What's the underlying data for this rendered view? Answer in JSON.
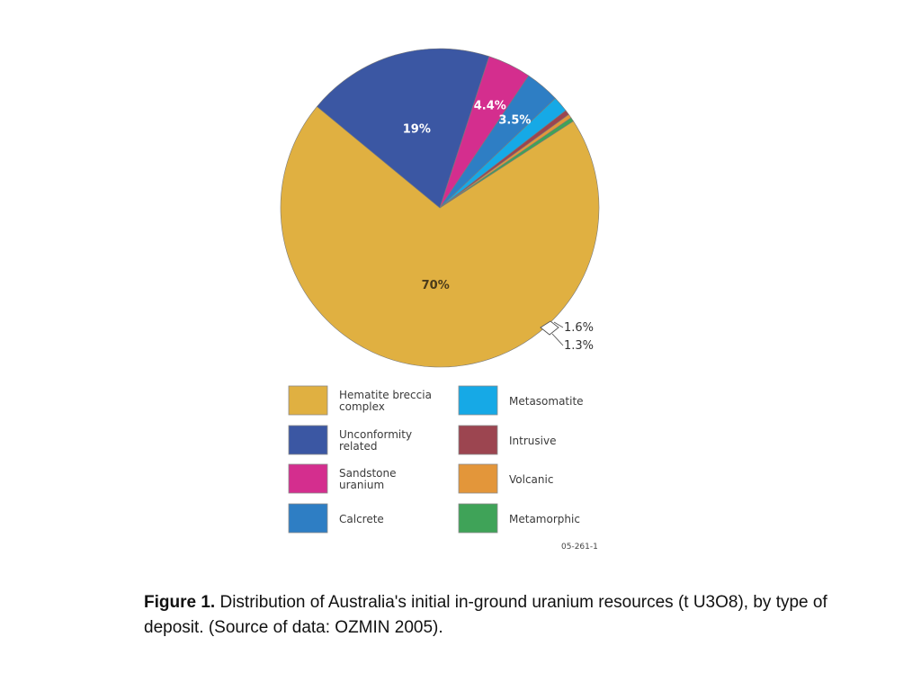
{
  "chart_data": {
    "type": "pie",
    "title": "",
    "slices": [
      {
        "name": "Hematite breccia complex",
        "value": 70,
        "label": "70%",
        "color": "#e0b041"
      },
      {
        "name": "Unconformity related",
        "value": 19,
        "label": "19%",
        "color": "#3b57a3"
      },
      {
        "name": "Sandstone uranium",
        "value": 4.4,
        "label": "4.4%",
        "color": "#d42e8e"
      },
      {
        "name": "Calcrete",
        "value": 3.5,
        "label": "3.5%",
        "color": "#2e7ec4"
      },
      {
        "name": "Metasomatite",
        "value": 1.6,
        "label": "",
        "color": "#16a9e6"
      },
      {
        "name": "Intrusive",
        "value": 0.5,
        "label": "",
        "color": "#9c4550"
      },
      {
        "name": "Volcanic",
        "value": 0.4,
        "label": "",
        "color": "#e3963a"
      },
      {
        "name": "Metamorphic",
        "value": 0.4,
        "label": "",
        "color": "#3fa358"
      }
    ],
    "callouts": [
      "1.6%",
      "1.3%"
    ],
    "legend": {
      "left": [
        {
          "lines": [
            "Hematite breccia",
            "complex"
          ],
          "color": "#e0b041"
        },
        {
          "lines": [
            "Unconformity",
            "related"
          ],
          "color": "#3b57a3"
        },
        {
          "lines": [
            "Sandstone",
            "uranium"
          ],
          "color": "#d42e8e"
        },
        {
          "lines": [
            "Calcrete"
          ],
          "color": "#2e7ec4"
        }
      ],
      "right": [
        {
          "lines": [
            "Metasomatite"
          ],
          "color": "#16a9e6"
        },
        {
          "lines": [
            "Intrusive"
          ],
          "color": "#9c4550"
        },
        {
          "lines": [
            "Volcanic"
          ],
          "color": "#e3963a"
        },
        {
          "lines": [
            "Metamorphic"
          ],
          "color": "#3fa358"
        }
      ]
    },
    "figure_code": "05-261-1"
  },
  "caption": {
    "label": "Figure 1.",
    "text": " Distribution of Australia's initial in-ground uranium resources (t U3O8), by type of deposit. (Source of data: OZMIN 2005)."
  }
}
